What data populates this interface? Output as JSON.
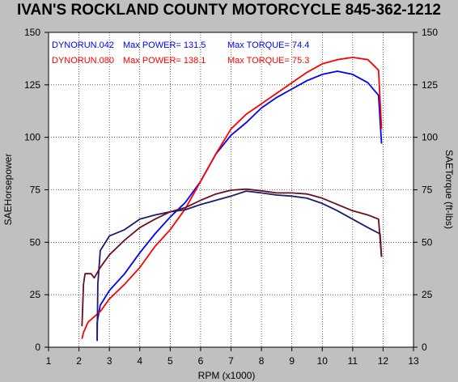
{
  "title": "IVAN'S ROCKLAND COUNTY MOTORCYCLE 845-362-1212",
  "legend": [
    {
      "run": "DYNORUN.042",
      "power_label": "Max POWER= 131.5",
      "torque_label": "Max TORQUE= 74.4",
      "color": "#0000ff"
    },
    {
      "run": "DYNORUN.080",
      "power_label": "Max POWER= 138.1",
      "torque_label": "Max TORQUE= 75.3",
      "color": "#ff0000"
    }
  ],
  "chart_data": {
    "type": "line",
    "title": "IVAN'S ROCKLAND COUNTY MOTORCYCLE 845-362-1212",
    "xlabel": "RPM (x1000)",
    "ylabel_left": "SAEHorsepower",
    "ylabel_right": "SAETorque (ft-lbs)",
    "xlim": [
      1,
      13
    ],
    "ylim": [
      0,
      150
    ],
    "x_ticks": [
      "1",
      "2",
      "3",
      "4",
      "5",
      "6",
      "7",
      "8",
      "9",
      "10",
      "11",
      "12",
      "13"
    ],
    "y_ticks": [
      "0",
      "25",
      "50",
      "75",
      "100",
      "125",
      "150"
    ],
    "grid": true,
    "legend_position": "top-left",
    "colors": {
      "run042_power": "#0000ff",
      "run080_power": "#ff0000",
      "run042_torque": "#1c1c6c",
      "run080_torque": "#6a0f1f"
    },
    "series": [
      {
        "name": "DYNORUN.042",
        "measure": "power",
        "color": "#0000ff",
        "points": [
          [
            2.6,
            3
          ],
          [
            2.6,
            12
          ],
          [
            2.7,
            20
          ],
          [
            3.0,
            27
          ],
          [
            3.5,
            35
          ],
          [
            4.0,
            45
          ],
          [
            4.5,
            54
          ],
          [
            5.0,
            62
          ],
          [
            5.5,
            69
          ],
          [
            6.0,
            79
          ],
          [
            6.5,
            92
          ],
          [
            7.0,
            101
          ],
          [
            7.5,
            107
          ],
          [
            8.0,
            114
          ],
          [
            8.5,
            119
          ],
          [
            9.0,
            123
          ],
          [
            9.5,
            127
          ],
          [
            10.0,
            130
          ],
          [
            10.5,
            131.5
          ],
          [
            11.0,
            130
          ],
          [
            11.5,
            126
          ],
          [
            11.85,
            120
          ],
          [
            11.95,
            97
          ]
        ]
      },
      {
        "name": "DYNORUN.080",
        "measure": "power",
        "color": "#ff0000",
        "points": [
          [
            2.1,
            4
          ],
          [
            2.15,
            7
          ],
          [
            2.3,
            12
          ],
          [
            2.7,
            17
          ],
          [
            3.0,
            23
          ],
          [
            3.5,
            30
          ],
          [
            4.0,
            38
          ],
          [
            4.5,
            48
          ],
          [
            5.0,
            56
          ],
          [
            5.5,
            66
          ],
          [
            6.0,
            79
          ],
          [
            6.5,
            92
          ],
          [
            7.0,
            104
          ],
          [
            7.5,
            111
          ],
          [
            8.0,
            116
          ],
          [
            8.5,
            121
          ],
          [
            9.0,
            126
          ],
          [
            9.5,
            131
          ],
          [
            10.0,
            135
          ],
          [
            10.5,
            137
          ],
          [
            11.0,
            138.1
          ],
          [
            11.5,
            137
          ],
          [
            11.85,
            132
          ],
          [
            11.95,
            104
          ]
        ]
      },
      {
        "name": "DYNORUN.042",
        "measure": "torque",
        "color": "#1c1c6c",
        "points": [
          [
            2.6,
            4
          ],
          [
            2.62,
            30
          ],
          [
            2.7,
            46
          ],
          [
            3.0,
            53
          ],
          [
            3.5,
            56
          ],
          [
            4.0,
            61
          ],
          [
            4.5,
            63
          ],
          [
            5.0,
            64.5
          ],
          [
            5.5,
            65.5
          ],
          [
            6.0,
            68
          ],
          [
            6.5,
            70
          ],
          [
            7.0,
            72
          ],
          [
            7.5,
            74.4
          ],
          [
            8.0,
            73.5
          ],
          [
            8.5,
            72.5
          ],
          [
            9.0,
            72
          ],
          [
            9.5,
            71
          ],
          [
            10.0,
            68.5
          ],
          [
            10.5,
            65
          ],
          [
            11.0,
            61
          ],
          [
            11.5,
            57
          ],
          [
            11.9,
            54
          ],
          [
            11.95,
            43
          ]
        ]
      },
      {
        "name": "DYNORUN.080",
        "measure": "torque",
        "color": "#6a0f1f",
        "points": [
          [
            2.1,
            10
          ],
          [
            2.15,
            30
          ],
          [
            2.2,
            35
          ],
          [
            2.4,
            35
          ],
          [
            2.5,
            33
          ],
          [
            2.7,
            38
          ],
          [
            3.0,
            44
          ],
          [
            3.5,
            51
          ],
          [
            4.0,
            57
          ],
          [
            4.5,
            61
          ],
          [
            5.0,
            64.5
          ],
          [
            5.5,
            66.5
          ],
          [
            6.0,
            70
          ],
          [
            6.5,
            73
          ],
          [
            7.0,
            74.8
          ],
          [
            7.5,
            75.3
          ],
          [
            8.0,
            74.5
          ],
          [
            8.5,
            73.5
          ],
          [
            9.0,
            73.5
          ],
          [
            9.5,
            73
          ],
          [
            10.0,
            71
          ],
          [
            10.5,
            68
          ],
          [
            11.0,
            65
          ],
          [
            11.5,
            63
          ],
          [
            11.85,
            61
          ],
          [
            11.95,
            43
          ]
        ]
      }
    ]
  }
}
